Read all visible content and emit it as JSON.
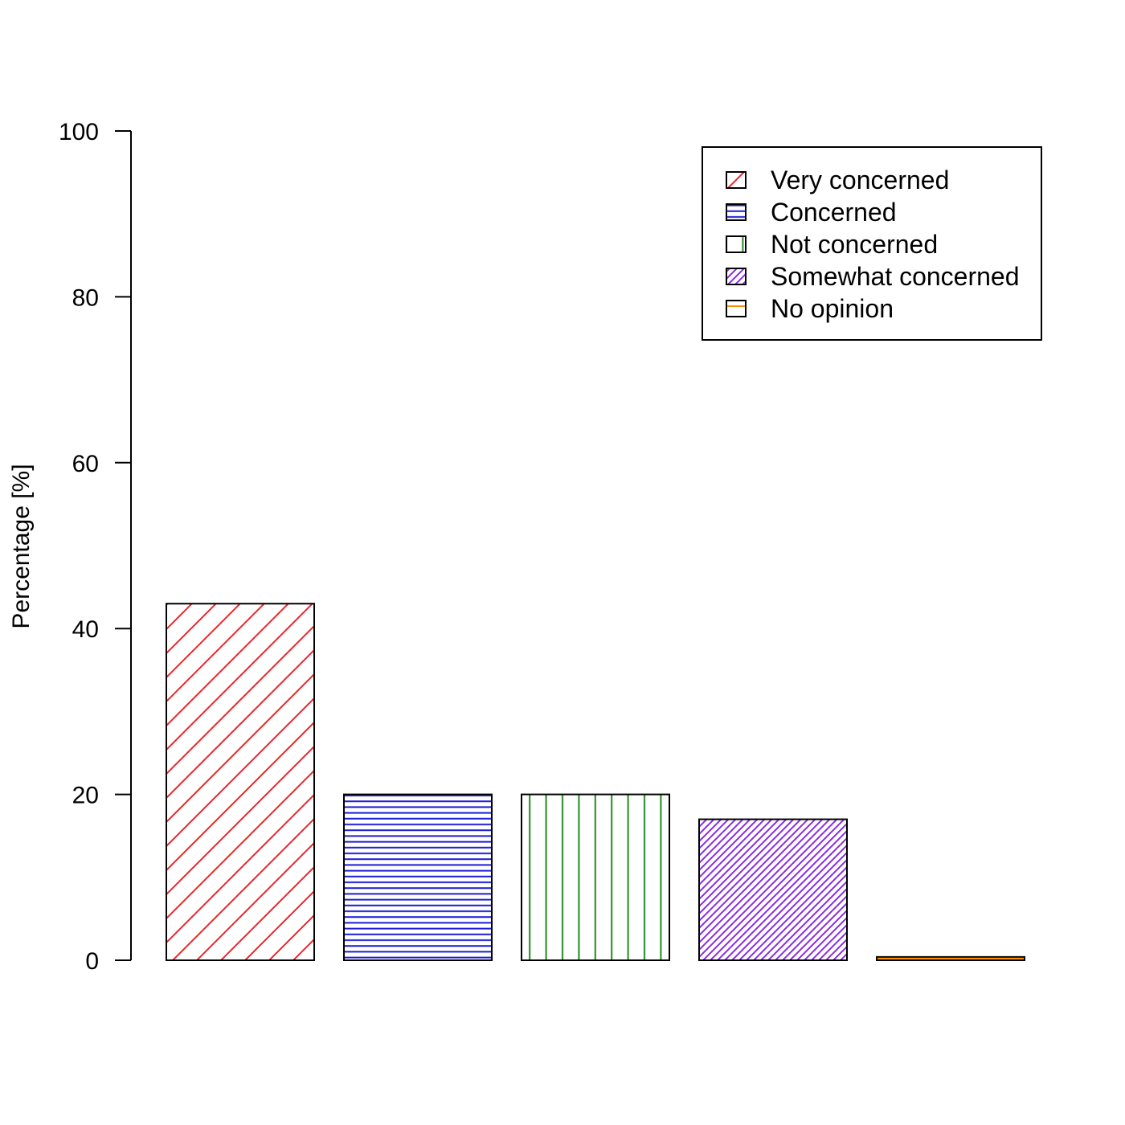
{
  "chart_data": {
    "type": "bar",
    "categories": [
      "Very concerned",
      "Concerned",
      "Not concerned",
      "Somewhat concerned",
      "No opinion"
    ],
    "values": [
      43,
      20,
      20,
      17,
      0.4
    ],
    "colors": [
      "#e8262b",
      "#1a1ad6",
      "#1f8a1f",
      "#8a2be2",
      "#ff8c00"
    ],
    "patterns": [
      "diagonal-wide",
      "horizontal",
      "vertical",
      "diagonal-dense",
      "horizontal-sparse"
    ],
    "ylabel": "Percentage [%]",
    "xlabel": "",
    "title": "",
    "ylim": [
      0,
      100
    ],
    "yticks": [
      0,
      20,
      40,
      60,
      80,
      100
    ],
    "legend_position": "top-right",
    "grid": false
  }
}
